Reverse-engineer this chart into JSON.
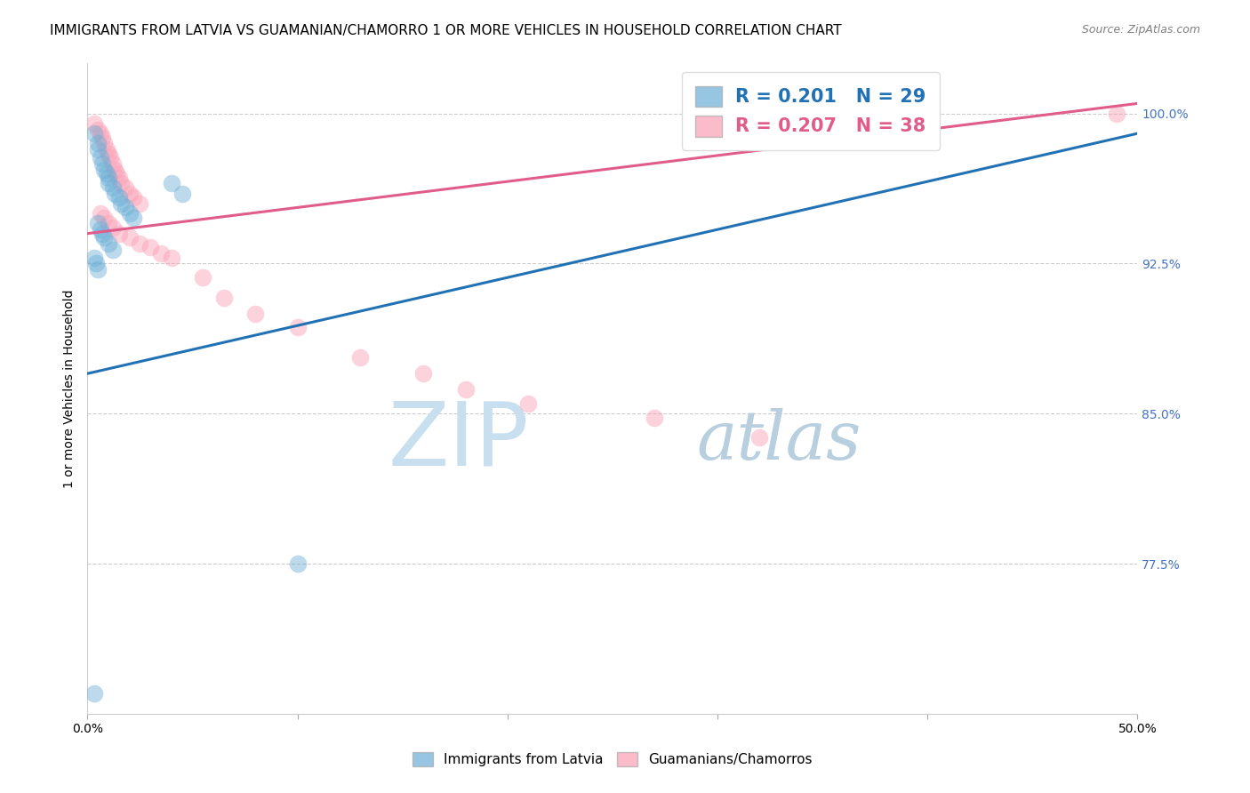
{
  "title": "IMMIGRANTS FROM LATVIA VS GUAMANIAN/CHAMORRO 1 OR MORE VEHICLES IN HOUSEHOLD CORRELATION CHART",
  "source": "Source: ZipAtlas.com",
  "ylabel": "1 or more Vehicles in Household",
  "xlabel": "",
  "legend1_label": "Immigrants from Latvia",
  "legend2_label": "Guamanians/Chamorros",
  "R1": 0.201,
  "N1": 29,
  "R2": 0.207,
  "N2": 38,
  "xmin": 0.0,
  "xmax": 0.5,
  "ymin": 0.7,
  "ymax": 1.025,
  "yticks": [
    0.775,
    0.85,
    0.925,
    1.0
  ],
  "ytick_labels": [
    "77.5%",
    "85.0%",
    "92.5%",
    "100.0%"
  ],
  "xticks": [
    0.0,
    0.1,
    0.2,
    0.3,
    0.4,
    0.5
  ],
  "xtick_labels": [
    "0.0%",
    "",
    "",
    "",
    "",
    "50.0%"
  ],
  "color_blue": "#6baed6",
  "color_pink": "#fa9fb5",
  "line_blue": "#2171b5",
  "line_pink": "#e05c8a",
  "blue_scatter_x": [
    0.003,
    0.005,
    0.005,
    0.006,
    0.007,
    0.008,
    0.009,
    0.01,
    0.01,
    0.012,
    0.013,
    0.015,
    0.016,
    0.018,
    0.02,
    0.022,
    0.005,
    0.006,
    0.007,
    0.008,
    0.01,
    0.012,
    0.04,
    0.045,
    0.003,
    0.004,
    0.005,
    0.1,
    0.003
  ],
  "blue_scatter_y": [
    0.99,
    0.985,
    0.982,
    0.978,
    0.975,
    0.972,
    0.97,
    0.968,
    0.965,
    0.963,
    0.96,
    0.958,
    0.955,
    0.953,
    0.95,
    0.948,
    0.945,
    0.942,
    0.94,
    0.938,
    0.935,
    0.932,
    0.965,
    0.96,
    0.928,
    0.925,
    0.922,
    0.775,
    0.71
  ],
  "pink_scatter_x": [
    0.003,
    0.005,
    0.006,
    0.007,
    0.008,
    0.009,
    0.01,
    0.011,
    0.012,
    0.013,
    0.014,
    0.015,
    0.016,
    0.018,
    0.02,
    0.022,
    0.025,
    0.006,
    0.008,
    0.01,
    0.012,
    0.015,
    0.02,
    0.025,
    0.03,
    0.035,
    0.04,
    0.055,
    0.065,
    0.08,
    0.1,
    0.13,
    0.16,
    0.18,
    0.21,
    0.27,
    0.32,
    0.49
  ],
  "pink_scatter_y": [
    0.995,
    0.992,
    0.99,
    0.988,
    0.985,
    0.982,
    0.98,
    0.978,
    0.975,
    0.972,
    0.97,
    0.968,
    0.965,
    0.963,
    0.96,
    0.958,
    0.955,
    0.95,
    0.948,
    0.945,
    0.943,
    0.94,
    0.938,
    0.935,
    0.933,
    0.93,
    0.928,
    0.918,
    0.908,
    0.9,
    0.893,
    0.878,
    0.87,
    0.862,
    0.855,
    0.848,
    0.838,
    1.0
  ],
  "blue_line_x": [
    0.0,
    0.5
  ],
  "blue_line_y": [
    0.87,
    0.99
  ],
  "pink_line_x": [
    0.0,
    0.5
  ],
  "pink_line_y": [
    0.94,
    1.005
  ],
  "watermark_zip": "ZIP",
  "watermark_atlas": "atlas",
  "watermark_color_zip": "#c8dff0",
  "watermark_color_atlas": "#b8cfe0",
  "title_fontsize": 11,
  "tick_fontsize": 10,
  "ytick_color": "#4472c4",
  "source_fontsize": 9
}
